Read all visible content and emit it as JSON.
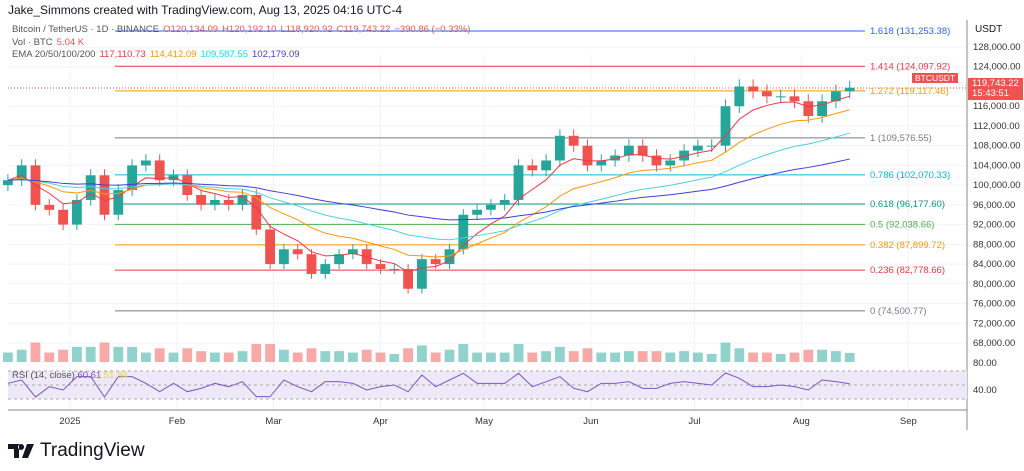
{
  "credit": "Jake_Simmons created with TradingView.com, Aug 13, 2025 04:16 UTC-4",
  "legend": {
    "symbol": "Bitcoin / TetherUS · 1D · BINANCE",
    "o": "O120,134.09",
    "h": "H120,192.10",
    "l": "L118,920.92",
    "c": "C119,743.22",
    "chg": "−390.86 (−0.33%)",
    "vol_label": "Vol · BTC",
    "vol_value": "5.04 K",
    "ema_label": "EMA 20/50/100/200",
    "ema20": "117,110.73",
    "ema50": "114,412.09",
    "ema100": "109,587.55",
    "ema200": "102,179.09"
  },
  "price_badge": {
    "symbol": "BTCUSDT",
    "price": "119,743.22",
    "countdown": "15:43:51"
  },
  "axis_currency": "USDT",
  "rsi": {
    "label": "RSI (14, close)",
    "value": "60.61",
    "ma": "51.94",
    "ticks": [
      "80.00",
      "40.00"
    ]
  },
  "brand": "TradingView",
  "colors": {
    "up": "#26a69a",
    "down": "#ef5350",
    "ema20": "#f23645",
    "ema50": "#ff9800",
    "ema100": "#4dd0e1",
    "ema200": "#3f3fdb",
    "rsi": "#7e57c2",
    "rsi_ma": "#f2e04b"
  },
  "chart_data": {
    "type": "candlestick",
    "ylim": [
      64000,
      132000
    ],
    "yticks": [
      "128,000.00",
      "124,000.00",
      "116,000.00",
      "112,000.00",
      "108,000.00",
      "104,000.00",
      "100,000.00",
      "96,000.00",
      "92,000.00",
      "88,000.00",
      "84,000.00",
      "80,000.00",
      "76,000.00",
      "72,000.00",
      "68,000.00"
    ],
    "xticks": [
      {
        "label": "2025",
        "date": "2025-01-01"
      },
      {
        "label": "Feb",
        "date": "2025-02-01"
      },
      {
        "label": "Mar",
        "date": "2025-03-01"
      },
      {
        "label": "Apr",
        "date": "2025-04-01"
      },
      {
        "label": "May",
        "date": "2025-05-01"
      },
      {
        "label": "Jun",
        "date": "2025-06-01"
      },
      {
        "label": "Jul",
        "date": "2025-07-01"
      },
      {
        "label": "Aug",
        "date": "2025-08-01"
      },
      {
        "label": "Sep",
        "date": "2025-09-01"
      }
    ],
    "start_date": "2024-12-14",
    "step_days": 4,
    "close": [
      101000,
      104000,
      96000,
      95000,
      92000,
      97000,
      102000,
      94000,
      99000,
      104000,
      105000,
      101000,
      102000,
      98000,
      96000,
      97000,
      96000,
      98000,
      91000,
      84000,
      87000,
      86000,
      82000,
      84000,
      86000,
      87000,
      84000,
      83000,
      83000,
      79000,
      85000,
      84000,
      87000,
      94000,
      95000,
      96000,
      97000,
      104000,
      103000,
      105000,
      110000,
      108000,
      104000,
      105000,
      106000,
      108000,
      106000,
      104000,
      105000,
      107000,
      108000,
      108000,
      116000,
      120000,
      119000,
      118000,
      118000,
      117000,
      114000,
      117000,
      119000,
      119743
    ],
    "fib_levels": [
      {
        "label": "1.618 (131,253.38)",
        "price": 131253.38,
        "color": "#2962ff"
      },
      {
        "label": "1.414 (124,097.92)",
        "price": 124097.92,
        "color": "#f23645"
      },
      {
        "label": "1.272 (119,117.46)",
        "price": 119117.46,
        "color": "#ff9800"
      },
      {
        "label": "1 (109,576.55)",
        "price": 109576.55,
        "color": "#787b86"
      },
      {
        "label": "0.786 (102,070.33)",
        "price": 102070.33,
        "color": "#00bcd4"
      },
      {
        "label": "0.618 (96,177.60)",
        "price": 96177.6,
        "color": "#089981"
      },
      {
        "label": "0.5 (92,038.66)",
        "price": 92038.66,
        "color": "#4caf50"
      },
      {
        "label": "0.382 (87,899.72)",
        "price": 87899.72,
        "color": "#ff9800"
      },
      {
        "label": "0.236 (82,778.66)",
        "price": 82778.66,
        "color": "#f23645"
      },
      {
        "label": "0 (74,500.77)",
        "price": 74500.77,
        "color": "#787b86"
      }
    ]
  }
}
